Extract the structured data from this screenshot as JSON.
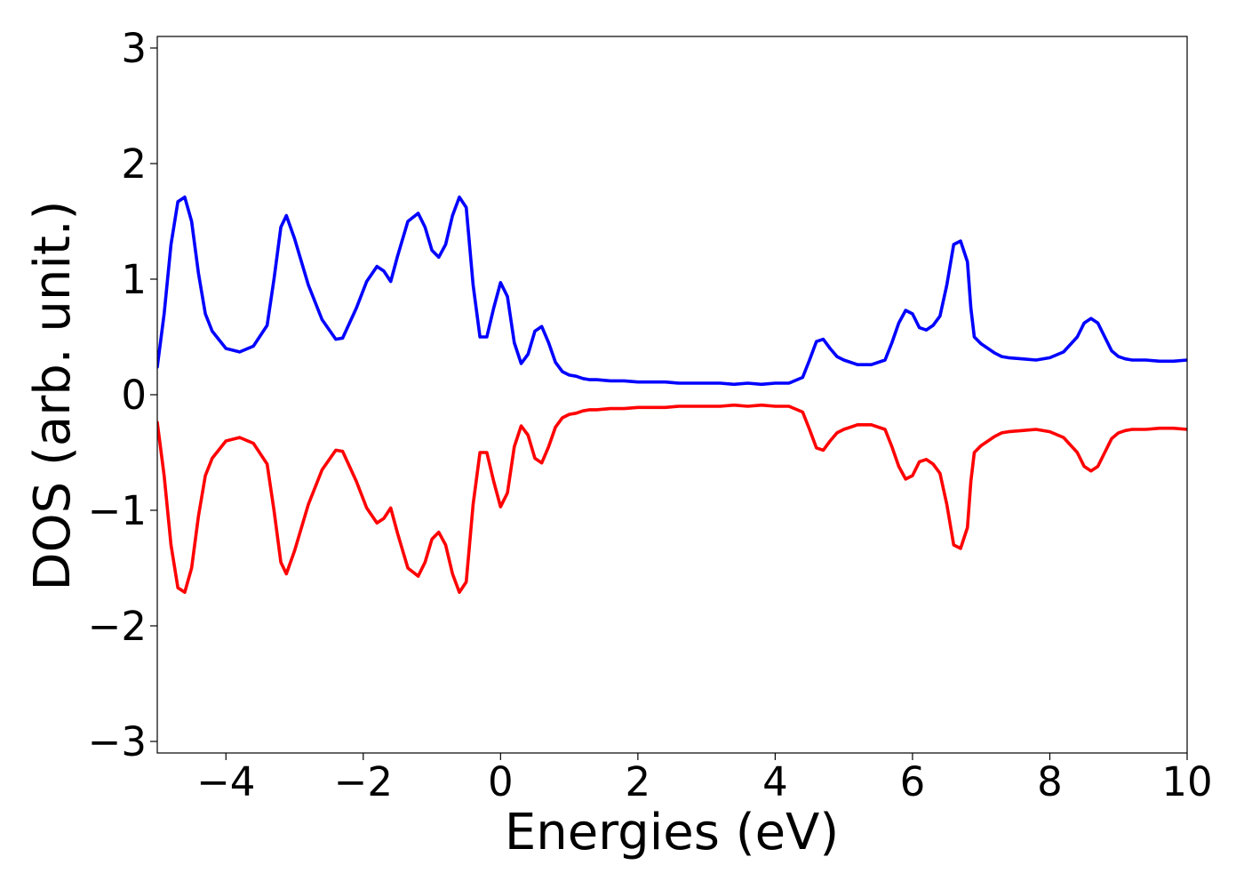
{
  "chart_data": {
    "type": "line",
    "title": "",
    "xlabel": "Energies (eV)",
    "ylabel": "DOS (arb. unit.)",
    "xlim": [
      -5,
      10
    ],
    "ylim": [
      -3.1,
      3.1
    ],
    "xticks": [
      -4,
      -2,
      0,
      2,
      4,
      6,
      8,
      10
    ],
    "xtick_labels": [
      "−4",
      "−2",
      "0",
      "2",
      "4",
      "6",
      "8",
      "10"
    ],
    "yticks": [
      -3,
      -2,
      -1,
      0,
      1,
      2,
      3
    ],
    "ytick_labels": [
      "−3",
      "−2",
      "−1",
      "0",
      "1",
      "2",
      "3"
    ],
    "grid": false,
    "legend": "none",
    "series": [
      {
        "color": "#0000ff",
        "x": [
          -5.0,
          -4.9,
          -4.8,
          -4.7,
          -4.6,
          -4.5,
          -4.4,
          -4.3,
          -4.2,
          -4.0,
          -3.8,
          -3.6,
          -3.4,
          -3.3,
          -3.2,
          -3.12,
          -3.0,
          -2.8,
          -2.6,
          -2.4,
          -2.3,
          -2.1,
          -1.95,
          -1.8,
          -1.7,
          -1.6,
          -1.5,
          -1.35,
          -1.2,
          -1.1,
          -1.0,
          -0.9,
          -0.8,
          -0.7,
          -0.6,
          -0.5,
          -0.4,
          -0.3,
          -0.2,
          -0.1,
          0.0,
          0.1,
          0.2,
          0.3,
          0.4,
          0.5,
          0.6,
          0.7,
          0.8,
          0.9,
          1.0,
          1.1,
          1.2,
          1.3,
          1.4,
          1.6,
          1.8,
          2.0,
          2.2,
          2.4,
          2.6,
          2.8,
          3.0,
          3.2,
          3.4,
          3.6,
          3.8,
          4.0,
          4.2,
          4.4,
          4.5,
          4.6,
          4.7,
          4.8,
          4.9,
          5.0,
          5.2,
          5.4,
          5.6,
          5.7,
          5.8,
          5.9,
          6.0,
          6.1,
          6.2,
          6.3,
          6.4,
          6.5,
          6.6,
          6.7,
          6.8,
          6.85,
          6.9,
          7.0,
          7.1,
          7.2,
          7.3,
          7.4,
          7.6,
          7.8,
          8.0,
          8.2,
          8.4,
          8.5,
          8.6,
          8.7,
          8.8,
          8.9,
          9.0,
          9.1,
          9.2,
          9.4,
          9.6,
          9.8,
          10.0
        ],
        "y": [
          0.24,
          0.7,
          1.3,
          1.67,
          1.71,
          1.5,
          1.05,
          0.7,
          0.55,
          0.4,
          0.37,
          0.42,
          0.6,
          1.0,
          1.45,
          1.55,
          1.35,
          0.95,
          0.65,
          0.48,
          0.49,
          0.75,
          0.98,
          1.11,
          1.07,
          0.98,
          1.2,
          1.5,
          1.57,
          1.45,
          1.25,
          1.19,
          1.3,
          1.55,
          1.71,
          1.62,
          0.95,
          0.5,
          0.5,
          0.75,
          0.97,
          0.85,
          0.45,
          0.27,
          0.35,
          0.55,
          0.59,
          0.45,
          0.28,
          0.2,
          0.17,
          0.16,
          0.14,
          0.13,
          0.13,
          0.12,
          0.12,
          0.11,
          0.11,
          0.11,
          0.1,
          0.1,
          0.1,
          0.1,
          0.09,
          0.1,
          0.09,
          0.1,
          0.1,
          0.15,
          0.3,
          0.46,
          0.48,
          0.4,
          0.33,
          0.3,
          0.26,
          0.26,
          0.3,
          0.45,
          0.62,
          0.73,
          0.7,
          0.58,
          0.56,
          0.6,
          0.68,
          0.95,
          1.3,
          1.33,
          1.15,
          0.75,
          0.5,
          0.44,
          0.4,
          0.36,
          0.33,
          0.32,
          0.31,
          0.3,
          0.32,
          0.37,
          0.5,
          0.62,
          0.66,
          0.62,
          0.5,
          0.38,
          0.33,
          0.31,
          0.3,
          0.3,
          0.29,
          0.29,
          0.3
        ]
      },
      {
        "color": "#ff0000",
        "x": [
          -5.0,
          -4.9,
          -4.8,
          -4.7,
          -4.6,
          -4.5,
          -4.4,
          -4.3,
          -4.2,
          -4.0,
          -3.8,
          -3.6,
          -3.4,
          -3.3,
          -3.2,
          -3.12,
          -3.0,
          -2.8,
          -2.6,
          -2.4,
          -2.3,
          -2.1,
          -1.95,
          -1.8,
          -1.7,
          -1.6,
          -1.5,
          -1.35,
          -1.2,
          -1.1,
          -1.0,
          -0.9,
          -0.8,
          -0.7,
          -0.6,
          -0.5,
          -0.4,
          -0.3,
          -0.2,
          -0.1,
          0.0,
          0.1,
          0.2,
          0.3,
          0.4,
          0.5,
          0.6,
          0.7,
          0.8,
          0.9,
          1.0,
          1.1,
          1.2,
          1.3,
          1.4,
          1.6,
          1.8,
          2.0,
          2.2,
          2.4,
          2.6,
          2.8,
          3.0,
          3.2,
          3.4,
          3.6,
          3.8,
          4.0,
          4.2,
          4.4,
          4.5,
          4.6,
          4.7,
          4.8,
          4.9,
          5.0,
          5.2,
          5.4,
          5.6,
          5.7,
          5.8,
          5.9,
          6.0,
          6.1,
          6.2,
          6.3,
          6.4,
          6.5,
          6.6,
          6.7,
          6.8,
          6.85,
          6.9,
          7.0,
          7.1,
          7.2,
          7.3,
          7.4,
          7.6,
          7.8,
          8.0,
          8.2,
          8.4,
          8.5,
          8.6,
          8.7,
          8.8,
          8.9,
          9.0,
          9.1,
          9.2,
          9.4,
          9.6,
          9.8,
          10.0
        ],
        "y": [
          -0.24,
          -0.7,
          -1.3,
          -1.67,
          -1.71,
          -1.5,
          -1.05,
          -0.7,
          -0.55,
          -0.4,
          -0.37,
          -0.42,
          -0.6,
          -1.0,
          -1.45,
          -1.55,
          -1.35,
          -0.95,
          -0.65,
          -0.48,
          -0.49,
          -0.75,
          -0.98,
          -1.11,
          -1.07,
          -0.98,
          -1.2,
          -1.5,
          -1.57,
          -1.45,
          -1.25,
          -1.19,
          -1.3,
          -1.55,
          -1.71,
          -1.62,
          -0.95,
          -0.5,
          -0.5,
          -0.75,
          -0.97,
          -0.85,
          -0.45,
          -0.27,
          -0.35,
          -0.55,
          -0.59,
          -0.45,
          -0.28,
          -0.2,
          -0.17,
          -0.16,
          -0.14,
          -0.13,
          -0.13,
          -0.12,
          -0.12,
          -0.11,
          -0.11,
          -0.11,
          -0.1,
          -0.1,
          -0.1,
          -0.1,
          -0.09,
          -0.1,
          -0.09,
          -0.1,
          -0.1,
          -0.15,
          -0.3,
          -0.46,
          -0.48,
          -0.4,
          -0.33,
          -0.3,
          -0.26,
          -0.26,
          -0.3,
          -0.45,
          -0.62,
          -0.73,
          -0.7,
          -0.58,
          -0.56,
          -0.6,
          -0.68,
          -0.95,
          -1.3,
          -1.33,
          -1.15,
          -0.75,
          -0.5,
          -0.44,
          -0.4,
          -0.36,
          -0.33,
          -0.32,
          -0.31,
          -0.3,
          -0.32,
          -0.37,
          -0.5,
          -0.62,
          -0.66,
          -0.62,
          -0.5,
          -0.38,
          -0.33,
          -0.31,
          -0.3,
          -0.3,
          -0.29,
          -0.29,
          -0.3
        ]
      }
    ]
  }
}
